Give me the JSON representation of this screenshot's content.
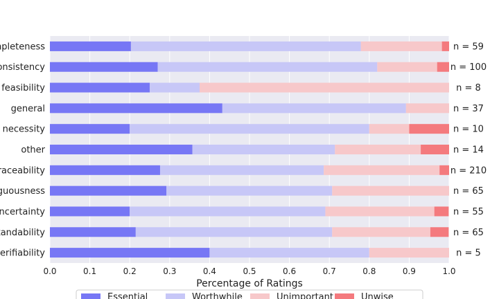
{
  "chart_data": {
    "type": "bar",
    "orientation": "horizontal",
    "stacked": true,
    "title": "",
    "xlabel": "Percentage of Ratings",
    "ylabel": "",
    "xlim": [
      0,
      1
    ],
    "x_ticks": [
      "0.0",
      "0.1",
      "0.2",
      "0.3",
      "0.4",
      "0.5",
      "0.6",
      "0.7",
      "0.8",
      "0.9",
      "1.0"
    ],
    "grid": true,
    "legend_position": "bottom-center",
    "categories": [
      "completeness",
      "consistency",
      "feasibility",
      "general",
      "necessity",
      "other",
      "traceability",
      "ambiguousness",
      "uncertainty",
      "understandability",
      "verifiability"
    ],
    "counts": [
      "n = 59",
      "n = 100",
      "n = 8",
      "n = 37",
      "n = 10",
      "n = 14",
      "n = 210",
      "n = 65",
      "n = 55",
      "n = 65",
      "n = 5"
    ],
    "series": [
      {
        "name": "Essential",
        "color": "#7777f5",
        "values": [
          0.203,
          0.27,
          0.25,
          0.432,
          0.2,
          0.357,
          0.276,
          0.292,
          0.2,
          0.215,
          0.4
        ]
      },
      {
        "name": "Worthwhile",
        "color": "#c7c7f7",
        "values": [
          0.576,
          0.55,
          0.125,
          0.46,
          0.6,
          0.357,
          0.41,
          0.415,
          0.49,
          0.492,
          0.4
        ]
      },
      {
        "name": "Unimportant",
        "color": "#f7c8ca",
        "values": [
          0.203,
          0.15,
          0.625,
          0.108,
          0.1,
          0.215,
          0.29,
          0.293,
          0.273,
          0.246,
          0.2
        ]
      },
      {
        "name": "Unwise",
        "color": "#f47a7e",
        "values": [
          0.018,
          0.03,
          0.0,
          0.0,
          0.1,
          0.071,
          0.024,
          0.0,
          0.036,
          0.046,
          0.0
        ]
      }
    ],
    "colors": {
      "plot_background": "#eaeaf2",
      "grid": "#ffffff",
      "legend_border": "#cccccc"
    }
  }
}
